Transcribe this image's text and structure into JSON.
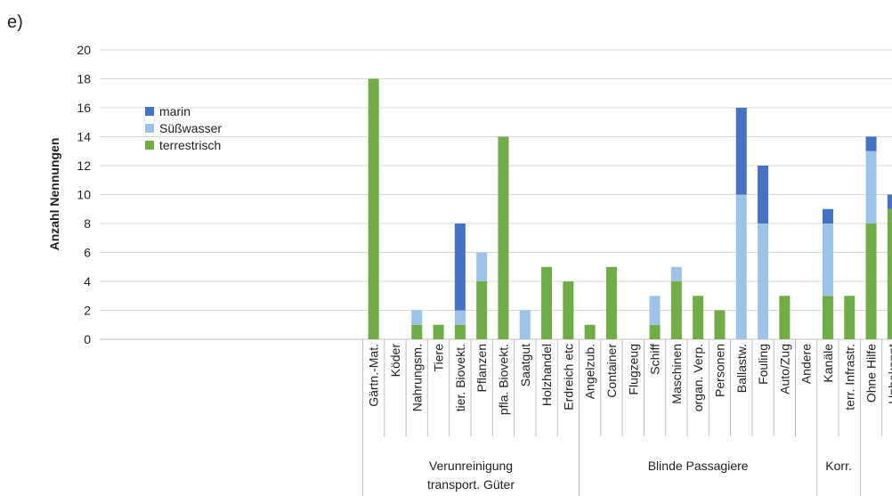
{
  "panel_label": "e)",
  "colors": {
    "marin": "#4472c4",
    "suesswasser": "#9dc3e6",
    "terrestrisch": "#70ad47",
    "grid": "#d9d9d9",
    "axis": "#bfbfbf"
  },
  "chart_data": {
    "type": "bar",
    "stacked": true,
    "title": "",
    "xlabel": "",
    "ylabel": "Anzahl Nennungen",
    "ylim": [
      0,
      20
    ],
    "yticks": [
      0,
      2,
      4,
      6,
      8,
      10,
      12,
      14,
      16,
      18,
      20
    ],
    "grid": true,
    "legend_position": "top-left",
    "categories": [
      "Gärtn.-Mat.",
      "Köder",
      "Nahrungsm.",
      "Tiere",
      "tier. Biovekt.",
      "Pflanzen",
      "pfla. Biovekt.",
      "Saatgut",
      "Holzhandel",
      "Erdreich etc",
      "Angelzub.",
      "Container",
      "Flugzeug",
      "Schiff",
      "Maschinen",
      "organ. Verp.",
      "Personen",
      "Ballastw.",
      "Fouling",
      "Auto/Zug",
      "Andere",
      "Kanäle",
      "terr. Infrastr.",
      "Ohne Hilfe",
      "Unbekannt"
    ],
    "groups": [
      {
        "label": "Verunreinigung transport. Güter",
        "lines": [
          "Verunreinigung",
          "transport. Güter"
        ],
        "start": 0,
        "end": 9
      },
      {
        "label": "Blinde Passagiere",
        "lines": [
          "Blinde Passagiere"
        ],
        "start": 10,
        "end": 20
      },
      {
        "label": "Korr.",
        "lines": [
          "Korr."
        ],
        "start": 21,
        "end": 22
      },
      {
        "label": "",
        "lines": [],
        "start": 23,
        "end": 24
      }
    ],
    "series": [
      {
        "name": "terrestrisch",
        "color": "#70ad47",
        "values": [
          18,
          0,
          1,
          1,
          1,
          4,
          14,
          0,
          5,
          4,
          1,
          5,
          0,
          1,
          4,
          3,
          2,
          0,
          0,
          3,
          0,
          3,
          3,
          8,
          9
        ]
      },
      {
        "name": "Süßwasser",
        "color": "#9dc3e6",
        "values": [
          0,
          0,
          1,
          0,
          1,
          2,
          0,
          2,
          0,
          0,
          0,
          0,
          0,
          2,
          1,
          0,
          0,
          10,
          8,
          0,
          0,
          5,
          0,
          5,
          0
        ]
      },
      {
        "name": "marin",
        "color": "#4472c4",
        "values": [
          0,
          0,
          0,
          0,
          6,
          0,
          0,
          0,
          0,
          0,
          0,
          0,
          0,
          0,
          0,
          0,
          0,
          6,
          4,
          0,
          0,
          1,
          0,
          1,
          1
        ]
      }
    ],
    "legend_order": [
      "marin",
      "Süßwasser",
      "terrestrisch"
    ]
  }
}
